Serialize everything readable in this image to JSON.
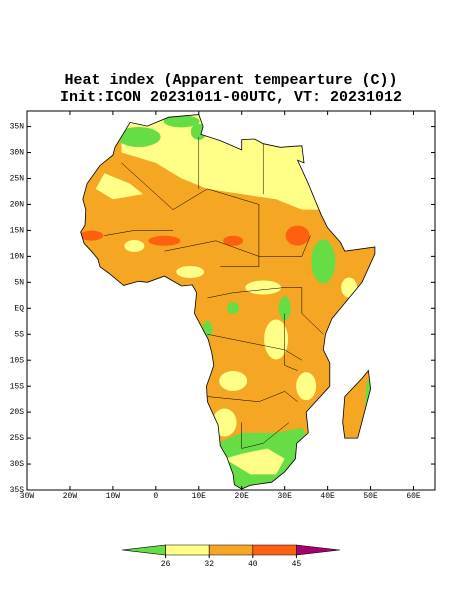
{
  "title": {
    "line1": "Heat index (Apparent tempearture (C))",
    "line2": "Init:ICON 20231011-00UTC, VT: 20231012"
  },
  "map": {
    "xlim": [
      -30,
      65
    ],
    "ylim": [
      -35,
      38
    ],
    "xticks": [
      {
        "value": -30,
        "label": "30W"
      },
      {
        "value": -20,
        "label": "20W"
      },
      {
        "value": -10,
        "label": "10W"
      },
      0,
      {
        "value": 10,
        "label": "10E"
      },
      {
        "value": 20,
        "label": "20E"
      },
      {
        "value": 30,
        "label": "30E"
      },
      {
        "value": 40,
        "label": "40E"
      },
      {
        "value": 50,
        "label": "50E"
      },
      {
        "value": 60,
        "label": "60E"
      }
    ],
    "yticks": [
      {
        "value": 35,
        "label": "35N"
      },
      {
        "value": 30,
        "label": "30N"
      },
      {
        "value": 25,
        "label": "25N"
      },
      {
        "value": 20,
        "label": "20N"
      },
      {
        "value": 15,
        "label": "15N"
      },
      {
        "value": 10,
        "label": "10N"
      },
      {
        "value": 5,
        "label": "5N"
      },
      {
        "value": 0,
        "label": "EQ"
      },
      {
        "value": -5,
        "label": "5S"
      },
      {
        "value": -10,
        "label": "10S"
      },
      {
        "value": -15,
        "label": "15S"
      },
      {
        "value": -20,
        "label": "20S"
      },
      {
        "value": -25,
        "label": "25S"
      },
      {
        "value": -30,
        "label": "30S"
      },
      {
        "value": -35,
        "label": "35S"
      }
    ]
  },
  "colorbar": {
    "ticks": [
      26,
      32,
      40,
      45
    ],
    "colors": [
      "#66dd44",
      "#ffff88",
      "#f5a623",
      "#ff6010",
      "#a8006a"
    ]
  }
}
